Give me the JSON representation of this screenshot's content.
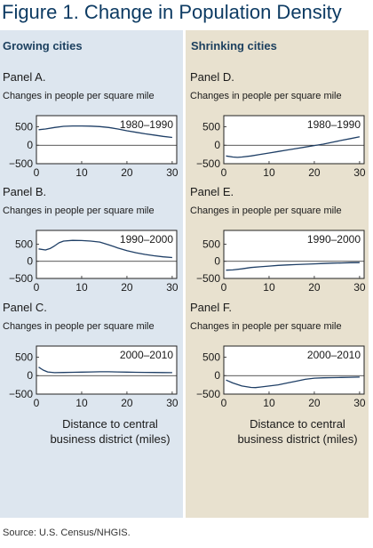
{
  "title": "Figure 1. Change in Population Density",
  "columns": [
    "Growing cities",
    "Shrinking cities"
  ],
  "source": "Source: U.S. Census/NHGIS.",
  "colors": {
    "title": "#0d3b63",
    "line": "#1f3f66",
    "left_bg": "#dde6ef",
    "right_bg": "#e8e1cf"
  },
  "chart_data": [
    {
      "type": "line",
      "panel": "Panel A.",
      "subtitle": "Changes in people per square mile",
      "period": "1980–1990",
      "column": "Growing cities",
      "xlabel": "",
      "xlim": [
        0,
        31
      ],
      "ylim": [
        -500,
        800
      ],
      "xticks": [
        "0",
        "10",
        "20",
        "30"
      ],
      "yticks": [
        "500",
        "0",
        "−500"
      ],
      "series": [
        {
          "x": [
            0.5,
            2,
            4,
            6,
            8,
            10,
            12,
            14,
            16,
            18,
            20,
            22,
            24,
            26,
            28,
            30
          ],
          "y": [
            420,
            440,
            480,
            510,
            520,
            520,
            515,
            505,
            480,
            440,
            390,
            350,
            310,
            275,
            240,
            210
          ]
        }
      ]
    },
    {
      "type": "line",
      "panel": "Panel B.",
      "subtitle": "Changes in people per square mile",
      "period": "1990–2000",
      "column": "Growing cities",
      "xlabel": "",
      "xlim": [
        0,
        31
      ],
      "ylim": [
        -500,
        900
      ],
      "xticks": [
        "0",
        "10",
        "20",
        "30"
      ],
      "yticks": [
        "500",
        "0",
        "−500"
      ],
      "series": [
        {
          "x": [
            0.5,
            2,
            3,
            4,
            5,
            6,
            8,
            10,
            12,
            14,
            16,
            18,
            20,
            22,
            24,
            26,
            28,
            30
          ],
          "y": [
            360,
            330,
            370,
            450,
            540,
            590,
            610,
            605,
            590,
            560,
            480,
            390,
            310,
            250,
            200,
            160,
            130,
            110
          ]
        }
      ]
    },
    {
      "type": "line",
      "panel": "Panel C.",
      "subtitle": "Changes in people per square mile",
      "period": "2000–2010",
      "column": "Growing cities",
      "xlabel": "Distance to central business district (miles)",
      "xlim": [
        0,
        31
      ],
      "ylim": [
        -500,
        800
      ],
      "xticks": [
        "0",
        "10",
        "20",
        "30"
      ],
      "yticks": [
        "500",
        "0",
        "−500"
      ],
      "series": [
        {
          "x": [
            0.5,
            1.5,
            2.5,
            4,
            6,
            8,
            10,
            12,
            14,
            16,
            18,
            20,
            22,
            24,
            26,
            28,
            30
          ],
          "y": [
            230,
            150,
            100,
            80,
            85,
            90,
            95,
            100,
            105,
            105,
            100,
            95,
            90,
            88,
            85,
            82,
            80
          ]
        }
      ]
    },
    {
      "type": "line",
      "panel": "Panel D.",
      "subtitle": "Changes in people per square mile",
      "period": "1980–1990",
      "column": "Shrinking cities",
      "xlabel": "",
      "xlim": [
        0,
        31
      ],
      "ylim": [
        -500,
        800
      ],
      "xticks": [
        "0",
        "10",
        "20",
        "30"
      ],
      "yticks": [
        "500",
        "0",
        "−500"
      ],
      "series": [
        {
          "x": [
            0.5,
            2,
            3,
            4,
            6,
            8,
            10,
            12,
            14,
            16,
            18,
            20,
            22,
            24,
            26,
            28,
            30
          ],
          "y": [
            -290,
            -320,
            -330,
            -320,
            -290,
            -250,
            -210,
            -170,
            -130,
            -90,
            -50,
            -10,
            30,
            80,
            130,
            180,
            230
          ]
        }
      ]
    },
    {
      "type": "line",
      "panel": "Panel E.",
      "subtitle": "Changes in people per square mile",
      "period": "1990–2000",
      "column": "Shrinking cities",
      "xlabel": "",
      "xlim": [
        0,
        31
      ],
      "ylim": [
        -500,
        900
      ],
      "xticks": [
        "0",
        "10",
        "20",
        "30"
      ],
      "yticks": [
        "500",
        "0",
        "−500"
      ],
      "series": [
        {
          "x": [
            0.5,
            2,
            4,
            6,
            8,
            10,
            12,
            14,
            16,
            18,
            20,
            22,
            24,
            26,
            28,
            30
          ],
          "y": [
            -260,
            -250,
            -220,
            -180,
            -160,
            -140,
            -120,
            -105,
            -95,
            -85,
            -75,
            -65,
            -55,
            -48,
            -42,
            -38
          ]
        }
      ]
    },
    {
      "type": "line",
      "panel": "Panel F.",
      "subtitle": "Changes in people per square mile",
      "period": "2000–2010",
      "column": "Shrinking cities",
      "xlabel": "Distance to central business district (miles)",
      "xlim": [
        0,
        31
      ],
      "ylim": [
        -500,
        800
      ],
      "xticks": [
        "0",
        "10",
        "20",
        "30"
      ],
      "yticks": [
        "500",
        "0",
        "−500"
      ],
      "series": [
        {
          "x": [
            0.5,
            2,
            4,
            6,
            7,
            8,
            10,
            12,
            14,
            16,
            18,
            20,
            22,
            24,
            26,
            28,
            30
          ],
          "y": [
            -120,
            -200,
            -280,
            -320,
            -325,
            -310,
            -280,
            -250,
            -200,
            -150,
            -100,
            -70,
            -60,
            -55,
            -50,
            -45,
            -40
          ]
        }
      ]
    }
  ]
}
